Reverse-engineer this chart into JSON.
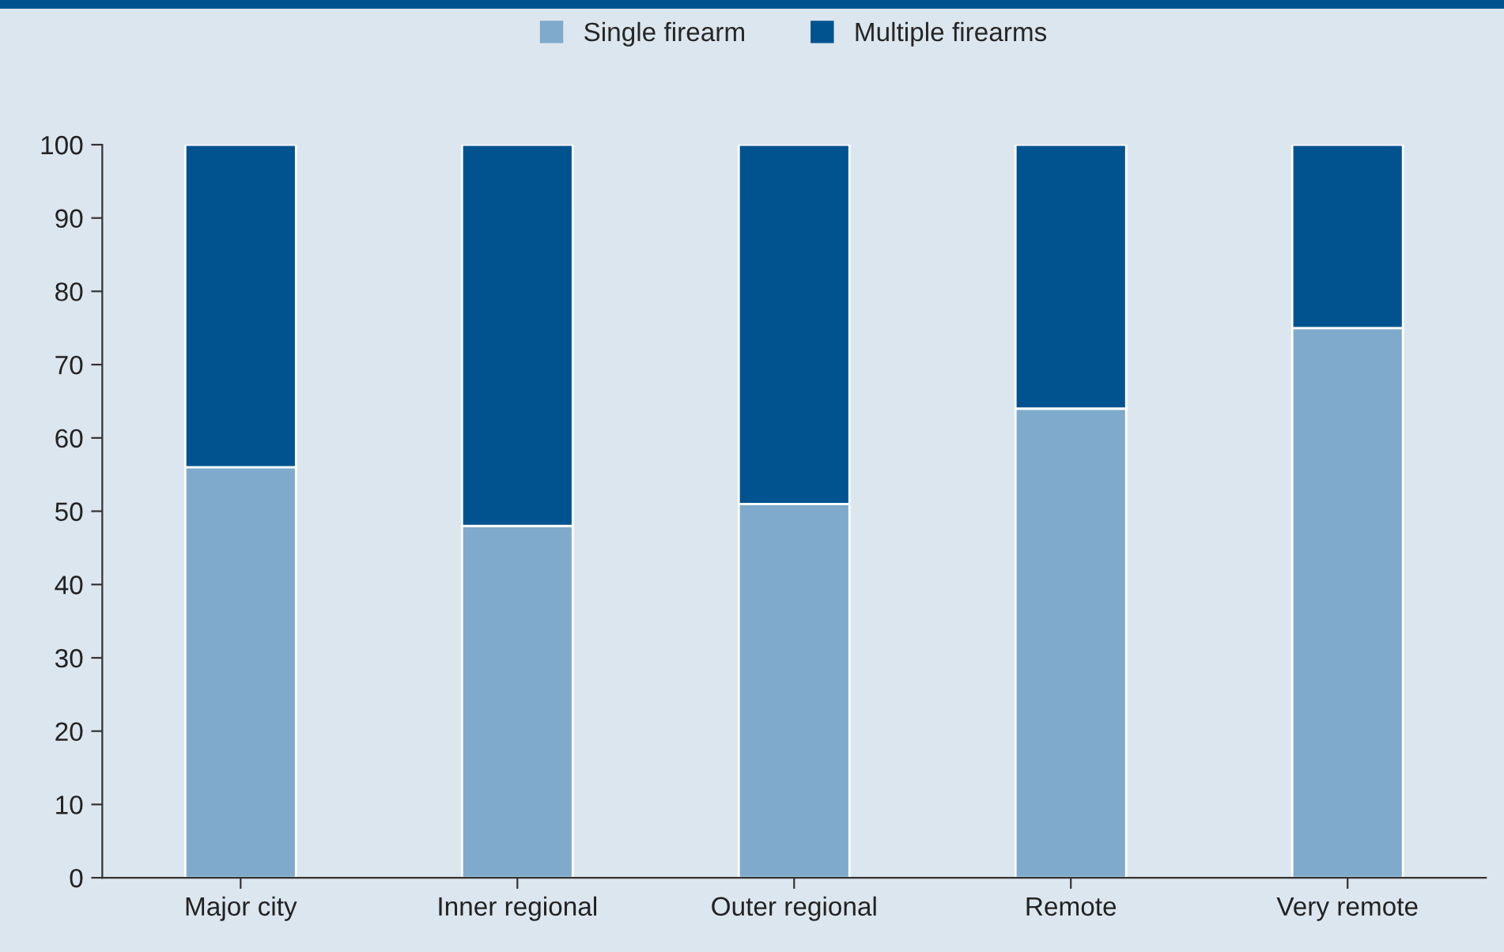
{
  "chart_data": {
    "type": "bar",
    "stacked": true,
    "categories": [
      "Major city",
      "Inner regional",
      "Outer regional",
      "Remote",
      "Very remote"
    ],
    "series": [
      {
        "name": "Single firearm",
        "color": "#7faacb",
        "values": [
          56,
          48,
          51,
          64,
          75
        ]
      },
      {
        "name": "Multiple firearms",
        "color": "#00538f",
        "values": [
          44,
          52,
          49,
          36,
          25
        ]
      }
    ],
    "ylim": [
      0,
      100
    ],
    "yticks": [
      0,
      10,
      20,
      30,
      40,
      50,
      60,
      70,
      80,
      90,
      100
    ],
    "grid": false,
    "legend": "top"
  }
}
